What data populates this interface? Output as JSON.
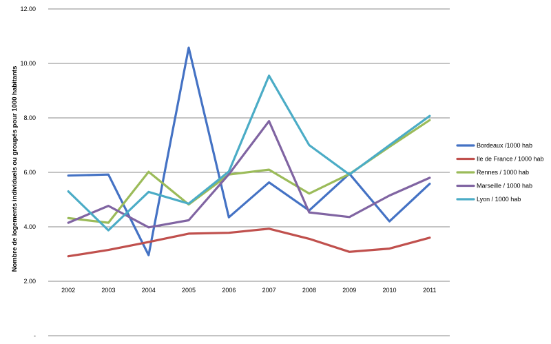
{
  "chart_data": {
    "type": "line",
    "ylabel": "Nombre de logements individuels ou groupés pour 1000 habitants",
    "xlabel": "",
    "title": "",
    "x": [
      "2002",
      "2003",
      "2004",
      "2005",
      "2006",
      "2007",
      "2008",
      "2009",
      "2010",
      "2011"
    ],
    "ylim": [
      0,
      12
    ],
    "yticks": [
      {
        "value": 0,
        "label": "-"
      },
      {
        "value": 2,
        "label": "2.00"
      },
      {
        "value": 4,
        "label": "4.00"
      },
      {
        "value": 6,
        "label": "6.00"
      },
      {
        "value": 8,
        "label": "8.00"
      },
      {
        "value": 10,
        "label": "10.00"
      },
      {
        "value": 12,
        "label": "12.00"
      }
    ],
    "grid": true,
    "legend_position": "right",
    "series": [
      {
        "name": "Bordeaux /1000 hab",
        "color": "#4472C4",
        "values": [
          5.88,
          5.92,
          2.96,
          10.58,
          4.35,
          5.63,
          4.6,
          5.95,
          4.2,
          5.58
        ]
      },
      {
        "name": "Ile de France / 1000 hab",
        "color": "#C0504D",
        "values": [
          2.92,
          3.15,
          3.44,
          3.75,
          3.78,
          3.93,
          3.56,
          3.08,
          3.2,
          3.6
        ]
      },
      {
        "name": "Rennes / 1000 hab",
        "color": "#9BBB59",
        "values": [
          4.32,
          4.15,
          6.02,
          4.82,
          5.92,
          6.1,
          5.22,
          5.94,
          6.94,
          7.92
        ]
      },
      {
        "name": "Marseille / 1000 hab",
        "color": "#8064A2",
        "values": [
          4.15,
          4.77,
          3.98,
          4.24,
          5.93,
          7.88,
          4.53,
          4.36,
          5.15,
          5.8
        ]
      },
      {
        "name": "Lyon / 1000 hab",
        "color": "#4BACC6",
        "values": [
          5.3,
          3.87,
          5.28,
          4.85,
          6.03,
          9.55,
          7.0,
          5.92,
          7.0,
          8.07
        ]
      }
    ]
  }
}
